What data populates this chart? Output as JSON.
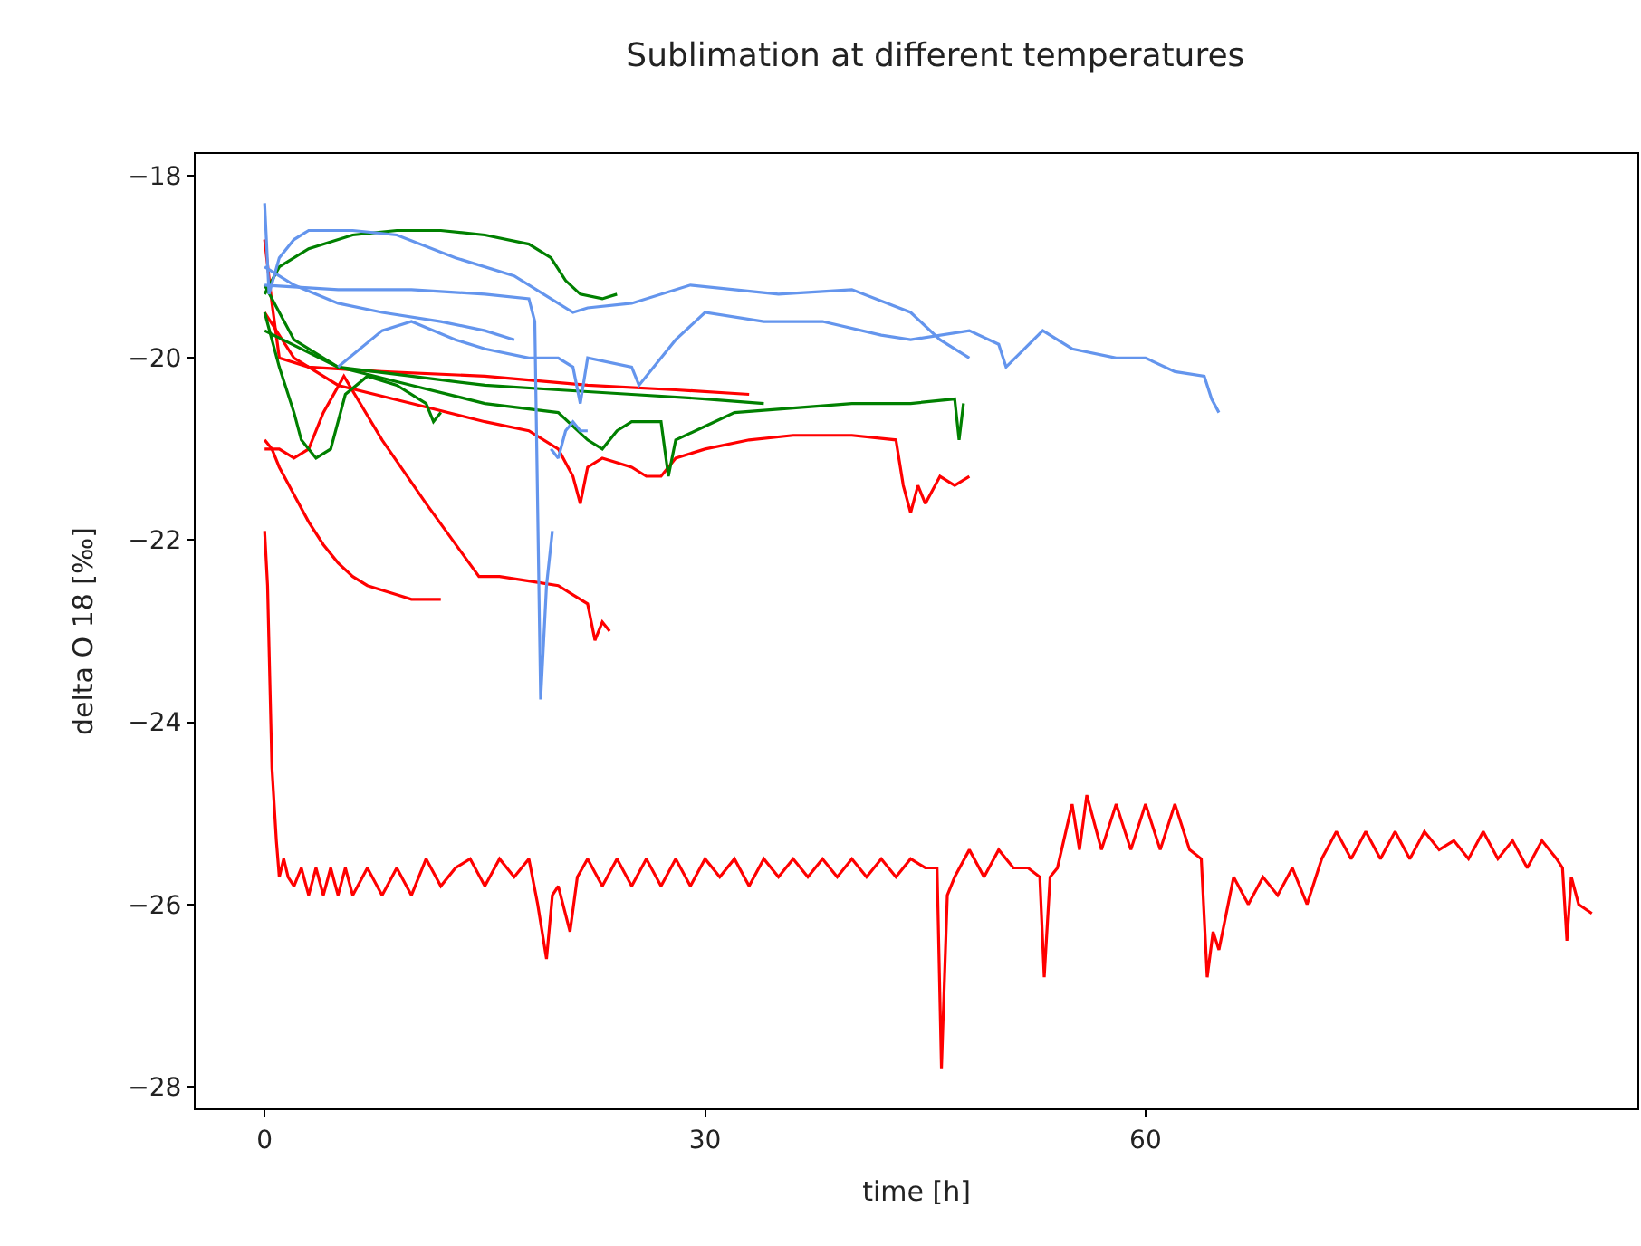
{
  "chart_data": {
    "type": "line",
    "title": "Sublimation at different temperatures",
    "xlabel": "time [h]",
    "ylabel": "delta O 18 [‰]",
    "xlim": [
      -4.7,
      93.5
    ],
    "ylim": [
      -28.24,
      -17.76
    ],
    "xticks": [
      0,
      30,
      60
    ],
    "yticks": [
      {
        "value": -28,
        "label": "−28"
      },
      {
        "value": -26,
        "label": "−26"
      },
      {
        "value": -24,
        "label": "−24"
      },
      {
        "value": -22,
        "label": "−22"
      },
      {
        "value": -20,
        "label": "−20"
      },
      {
        "value": -18,
        "label": "−18"
      }
    ],
    "line_style": "solid",
    "marker": "none",
    "series": [
      {
        "color": "#ff0000",
        "x": [
          0,
          0.2,
          0.5,
          0.8,
          1.0,
          1.3,
          1.6,
          2,
          2.5,
          3,
          3.5,
          4,
          4.5,
          5,
          5.5,
          6,
          7,
          8,
          9,
          10,
          11,
          12,
          13,
          14,
          15,
          16,
          17,
          18,
          18.6,
          19.2,
          19.6,
          20,
          20.8,
          21.3,
          22,
          23,
          24,
          25,
          26,
          27,
          28,
          29,
          30,
          31,
          32,
          33,
          34,
          35,
          36,
          37,
          38,
          39,
          40,
          41,
          42,
          43,
          44,
          45,
          45.8,
          46.1,
          46.5,
          47,
          48,
          49,
          50,
          51,
          52,
          52.8,
          53.1,
          53.5,
          54,
          55,
          55.5,
          56,
          57,
          58,
          59,
          60,
          61,
          62,
          63,
          63.8,
          64.2,
          64.6,
          65,
          66,
          67,
          68,
          69,
          70,
          71,
          72,
          73,
          74,
          75,
          76,
          77,
          78,
          79,
          80,
          81,
          82,
          83,
          84,
          85,
          86,
          87,
          88,
          88.4,
          88.7,
          89,
          89.5,
          90.4
        ],
        "values": [
          -21.9,
          -22.5,
          -24.5,
          -25.3,
          -25.7,
          -25.5,
          -25.7,
          -25.8,
          -25.6,
          -25.9,
          -25.6,
          -25.9,
          -25.6,
          -25.9,
          -25.6,
          -25.9,
          -25.6,
          -25.9,
          -25.6,
          -25.9,
          -25.5,
          -25.8,
          -25.6,
          -25.5,
          -25.8,
          -25.5,
          -25.7,
          -25.5,
          -26.0,
          -26.6,
          -25.9,
          -25.8,
          -26.3,
          -25.7,
          -25.5,
          -25.8,
          -25.5,
          -25.8,
          -25.5,
          -25.8,
          -25.5,
          -25.8,
          -25.5,
          -25.7,
          -25.5,
          -25.8,
          -25.5,
          -25.7,
          -25.5,
          -25.7,
          -25.5,
          -25.7,
          -25.5,
          -25.7,
          -25.5,
          -25.7,
          -25.5,
          -25.6,
          -25.6,
          -27.8,
          -25.9,
          -25.7,
          -25.4,
          -25.7,
          -25.4,
          -25.6,
          -25.6,
          -25.7,
          -26.8,
          -25.7,
          -25.6,
          -24.9,
          -25.4,
          -24.8,
          -25.4,
          -24.9,
          -25.4,
          -24.9,
          -25.4,
          -24.9,
          -25.4,
          -25.5,
          -26.8,
          -26.3,
          -26.5,
          -25.7,
          -26.0,
          -25.7,
          -25.9,
          -25.6,
          -26.0,
          -25.5,
          -25.2,
          -25.5,
          -25.2,
          -25.5,
          -25.2,
          -25.5,
          -25.2,
          -25.4,
          -25.3,
          -25.5,
          -25.2,
          -25.5,
          -25.3,
          -25.6,
          -25.3,
          -25.5,
          -25.6,
          -26.4,
          -25.7,
          -26.0,
          -26.1
        ]
      },
      {
        "color": "#ff0000",
        "x": [
          0,
          0.5,
          1,
          2,
          3,
          4,
          5,
          6,
          7,
          8,
          9,
          10,
          12
        ],
        "values": [
          -20.9,
          -21.0,
          -21.2,
          -21.5,
          -21.8,
          -22.05,
          -22.25,
          -22.4,
          -22.5,
          -22.55,
          -22.6,
          -22.65,
          -22.65
        ]
      },
      {
        "color": "#ff0000",
        "x": [
          0,
          1,
          2,
          3,
          4,
          5.4,
          8,
          11,
          14.6,
          16,
          18,
          20,
          21,
          22,
          22.5,
          23,
          23.5
        ],
        "values": [
          -21.0,
          -21.0,
          -21.1,
          -21.0,
          -20.6,
          -20.2,
          -20.9,
          -21.6,
          -22.4,
          -22.4,
          -22.45,
          -22.5,
          -22.6,
          -22.7,
          -23.1,
          -22.9,
          -23.0
        ]
      },
      {
        "color": "#ff0000",
        "x": [
          0,
          0.5,
          1,
          3,
          8,
          15,
          22,
          28,
          33
        ],
        "values": [
          -18.7,
          -19.4,
          -20.0,
          -20.1,
          -20.15,
          -20.2,
          -20.3,
          -20.35,
          -20.4
        ]
      },
      {
        "color": "#ff0000",
        "x": [
          0,
          2,
          5,
          10,
          15,
          18,
          20,
          21,
          21.5,
          22,
          23,
          25,
          26,
          27,
          28,
          30,
          33,
          36,
          40,
          43,
          43.5,
          44,
          44.5,
          45,
          46,
          47,
          48
        ],
        "values": [
          -19.5,
          -20.0,
          -20.3,
          -20.5,
          -20.7,
          -20.8,
          -21.0,
          -21.3,
          -21.6,
          -21.2,
          -21.1,
          -21.2,
          -21.3,
          -21.3,
          -21.1,
          -21.0,
          -20.9,
          -20.85,
          -20.85,
          -20.9,
          -21.4,
          -21.7,
          -21.4,
          -21.6,
          -21.3,
          -21.4,
          -21.3
        ]
      },
      {
        "color": "#008000",
        "x": [
          0,
          1,
          3,
          6,
          9,
          12,
          15,
          18,
          19.5,
          20.5,
          21.5,
          23,
          24
        ],
        "values": [
          -19.3,
          -19.0,
          -18.8,
          -18.65,
          -18.6,
          -18.6,
          -18.65,
          -18.75,
          -18.9,
          -19.15,
          -19.3,
          -19.35,
          -19.3
        ]
      },
      {
        "color": "#008000",
        "x": [
          0,
          2,
          5,
          10,
          15,
          20,
          22,
          23,
          24,
          25,
          27,
          27.5,
          28,
          30,
          32,
          36,
          40,
          44,
          47,
          47.3,
          47.6
        ],
        "values": [
          -19.2,
          -19.8,
          -20.1,
          -20.3,
          -20.5,
          -20.6,
          -20.9,
          -21.0,
          -20.8,
          -20.7,
          -20.7,
          -21.3,
          -20.9,
          -20.75,
          -20.6,
          -20.55,
          -20.5,
          -20.5,
          -20.45,
          -20.9,
          -20.5
        ]
      },
      {
        "color": "#008000",
        "x": [
          0,
          1,
          2,
          2.5,
          3.5,
          4.5,
          5.5,
          7,
          9,
          11,
          11.5,
          12
        ],
        "values": [
          -19.5,
          -20.1,
          -20.6,
          -20.9,
          -21.1,
          -21.0,
          -20.4,
          -20.2,
          -20.3,
          -20.5,
          -20.7,
          -20.6
        ]
      },
      {
        "color": "#008000",
        "x": [
          0,
          5,
          10,
          15,
          20,
          25,
          30,
          34
        ],
        "values": [
          -19.7,
          -20.1,
          -20.2,
          -20.3,
          -20.35,
          -20.4,
          -20.45,
          -20.5
        ]
      },
      {
        "color": "#6495ed",
        "x": [
          0,
          0.3,
          1,
          2,
          3,
          6,
          9,
          13,
          17,
          19,
          21,
          22,
          25,
          29,
          35,
          40,
          44,
          46,
          48
        ],
        "values": [
          -18.3,
          -19.3,
          -18.9,
          -18.7,
          -18.6,
          -18.6,
          -18.65,
          -18.9,
          -19.1,
          -19.3,
          -19.5,
          -19.45,
          -19.4,
          -19.2,
          -19.3,
          -19.25,
          -19.5,
          -19.8,
          -20.0
        ]
      },
      {
        "color": "#6495ed",
        "x": [
          5,
          8,
          10,
          13,
          15,
          18,
          20,
          21,
          21.5,
          22,
          25,
          25.5,
          28,
          30,
          34,
          38,
          42,
          44,
          48,
          50,
          50.5,
          53,
          55,
          58,
          60,
          62,
          64,
          64.5,
          65
        ],
        "values": [
          -20.1,
          -19.7,
          -19.6,
          -19.8,
          -19.9,
          -20.0,
          -20.0,
          -20.1,
          -20.5,
          -20.0,
          -20.1,
          -20.3,
          -19.8,
          -19.5,
          -19.6,
          -19.6,
          -19.75,
          -19.8,
          -19.7,
          -19.85,
          -20.1,
          -19.7,
          -19.9,
          -20.0,
          -20.0,
          -20.15,
          -20.2,
          -20.45,
          -20.6
        ]
      },
      {
        "color": "#6495ed",
        "x": [
          0,
          5,
          10,
          15,
          18,
          18.4,
          18.8,
          19.2,
          19.6
        ],
        "values": [
          -19.2,
          -19.25,
          -19.25,
          -19.3,
          -19.35,
          -19.6,
          -23.75,
          -22.5,
          -21.9
        ]
      },
      {
        "color": "#6495ed",
        "x": [
          0,
          2,
          5,
          8,
          12,
          15,
          17
        ],
        "values": [
          -19.0,
          -19.2,
          -19.4,
          -19.5,
          -19.6,
          -19.7,
          -19.8
        ]
      },
      {
        "color": "#6495ed",
        "x": [
          19.5,
          20,
          20.5,
          21,
          21.5,
          22
        ],
        "values": [
          -21.0,
          -21.1,
          -20.8,
          -20.7,
          -20.8,
          -20.8
        ]
      }
    ]
  }
}
